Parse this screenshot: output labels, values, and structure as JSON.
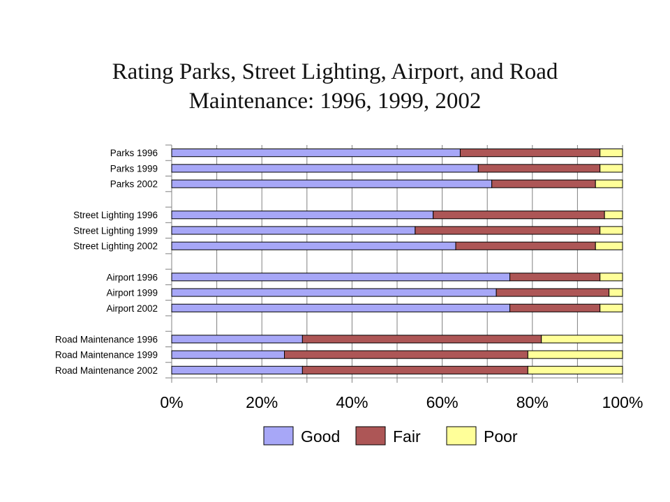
{
  "chart_data": {
    "type": "bar",
    "orientation": "horizontal",
    "stacked": "percent",
    "title_line1": "Rating Parks, Street Lighting, Airport, and Road",
    "title_line2": "Maintenance: 1996, 1999, 2002",
    "groups": [
      [
        "Parks 1996",
        "Parks 1999",
        "Parks 2002"
      ],
      [
        "Street Lighting 1996",
        "Street Lighting 1999",
        "Street Lighting 2002"
      ],
      [
        "Airport 1996",
        "Airport 1999",
        "Airport 2002"
      ],
      [
        "Road Maintenance 1996",
        "Road Maintenance 1999",
        "Road Maintenance 2002"
      ]
    ],
    "categories": [
      "Parks 1996",
      "Parks 1999",
      "Parks 2002",
      "Street Lighting 1996",
      "Street Lighting 1999",
      "Street Lighting 2002",
      "Airport 1996",
      "Airport 1999",
      "Airport 2002",
      "Road Maintenance 1996",
      "Road Maintenance 1999",
      "Road Maintenance 2002"
    ],
    "series": [
      {
        "name": "Good",
        "color": "#a7a7f7",
        "values": [
          64,
          68,
          71,
          58,
          54,
          63,
          75,
          72,
          75,
          29,
          25,
          29
        ]
      },
      {
        "name": "Fair",
        "color": "#ad5656",
        "values": [
          31,
          27,
          23,
          38,
          41,
          31,
          20,
          25,
          20,
          53,
          54,
          50
        ]
      },
      {
        "name": "Poor",
        "color": "#ffff99",
        "values": [
          5,
          5,
          6,
          4,
          5,
          6,
          5,
          3,
          5,
          18,
          21,
          21
        ]
      }
    ],
    "xticks": [
      "0%",
      "20%",
      "40%",
      "60%",
      "80%",
      "100%"
    ],
    "xlim": [
      0,
      100
    ],
    "grid": "vertical",
    "legend_position": "bottom"
  }
}
